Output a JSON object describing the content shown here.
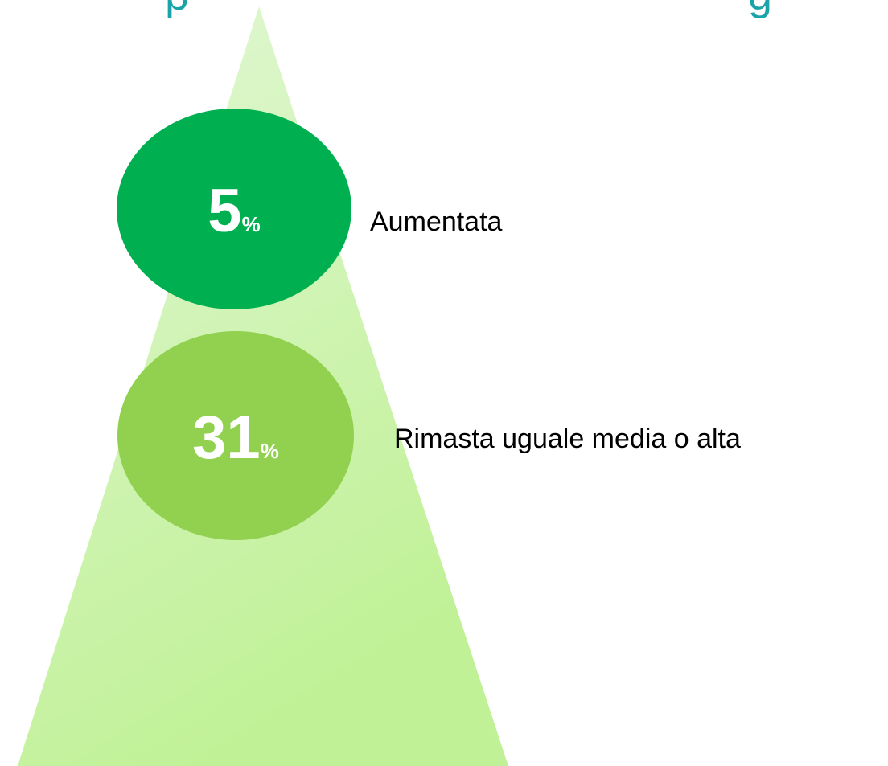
{
  "title_fragments": [
    "p",
    "g"
  ],
  "items": [
    {
      "value": 5,
      "unit": "%",
      "label": "Aumentata",
      "color": "#00b050"
    },
    {
      "value": 31,
      "unit": "%",
      "label": "Rimasta uguale media o alta",
      "color": "#92d050"
    }
  ]
}
